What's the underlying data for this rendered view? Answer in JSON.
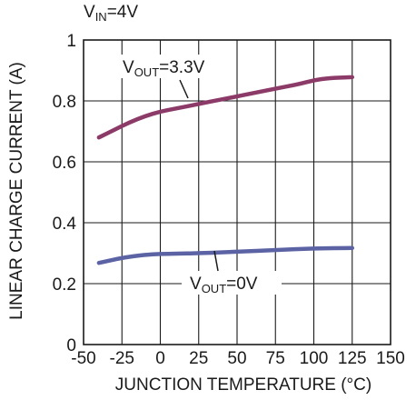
{
  "chart_data": {
    "type": "line",
    "title": "",
    "condition_label": {
      "main": "V",
      "sub": "IN",
      "rest": "=4V"
    },
    "xlabel": "JUNCTION TEMPERATURE (°C)",
    "ylabel": "LINEAR CHARGE CURRENT (A)",
    "xlim": [
      -50,
      150
    ],
    "ylim": [
      0,
      1
    ],
    "x_ticks": [
      -50,
      -25,
      0,
      25,
      50,
      75,
      100,
      125,
      150
    ],
    "x_tick_labels": [
      "-50",
      "-25",
      "0",
      "25",
      "50",
      "75",
      "100",
      "125",
      "150"
    ],
    "y_ticks": [
      0,
      0.2,
      0.4,
      0.6,
      0.8,
      1
    ],
    "y_tick_labels": [
      "0",
      "0.2",
      "0.4",
      "0.6",
      "0.8",
      "1"
    ],
    "grid": true,
    "series": [
      {
        "label_main": "V",
        "label_sub": "OUT",
        "label_rest": "=3.3V",
        "color": "#8c3a68",
        "x": [
          -40,
          -30,
          -20,
          -10,
          0,
          10,
          25,
          40,
          50,
          60,
          75,
          90,
          100,
          110,
          125
        ],
        "y": [
          0.68,
          0.705,
          0.73,
          0.75,
          0.765,
          0.775,
          0.79,
          0.805,
          0.815,
          0.825,
          0.84,
          0.855,
          0.868,
          0.875,
          0.878
        ]
      },
      {
        "label_main": "V",
        "label_sub": "OUT",
        "label_rest": "=0V",
        "color": "#5c63a4",
        "x": [
          -40,
          -25,
          -10,
          0,
          10,
          25,
          50,
          75,
          100,
          125
        ],
        "y": [
          0.268,
          0.285,
          0.295,
          0.298,
          0.298,
          0.3,
          0.305,
          0.31,
          0.316,
          0.317
        ]
      }
    ]
  }
}
